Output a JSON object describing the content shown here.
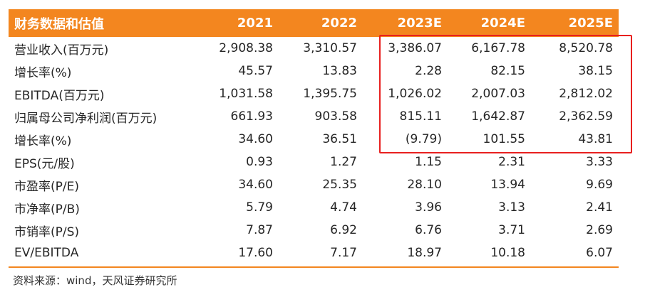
{
  "table": {
    "header": [
      "财务数据和估值",
      "2021",
      "2022",
      "2023E",
      "2024E",
      "2025E"
    ],
    "rows": [
      [
        "营业收入(百万元)",
        "2,908.38",
        "3,310.57",
        "3,386.07",
        "6,167.78",
        "8,520.78"
      ],
      [
        "增长率(%)",
        "45.57",
        "13.83",
        "2.28",
        "82.15",
        "38.15"
      ],
      [
        "EBITDA(百万元)",
        "1,031.58",
        "1,395.75",
        "1,026.02",
        "2,007.03",
        "2,812.02"
      ],
      [
        "归属母公司净利润(百万元)",
        "661.93",
        "903.58",
        "815.11",
        "1,642.87",
        "2,362.59"
      ],
      [
        "增长率(%)",
        "34.60",
        "36.51",
        "(9.79)",
        "101.55",
        "43.81"
      ],
      [
        "EPS(元/股)",
        "0.93",
        "1.27",
        "1.15",
        "2.31",
        "3.33"
      ],
      [
        "市盈率(P/E)",
        "34.60",
        "25.35",
        "28.10",
        "13.94",
        "9.69"
      ],
      [
        "市净率(P/B)",
        "5.79",
        "4.74",
        "3.96",
        "3.13",
        "2.41"
      ],
      [
        "市销率(P/S)",
        "7.87",
        "6.92",
        "6.76",
        "3.71",
        "2.69"
      ],
      [
        "EV/EBITDA",
        "17.60",
        "7.17",
        "18.97",
        "10.18",
        "6.07"
      ]
    ]
  },
  "source": "资料来源：wind，天风证券研究所",
  "colors": {
    "header_bg": "#f3861f",
    "highlight_border": "#e8201f"
  }
}
